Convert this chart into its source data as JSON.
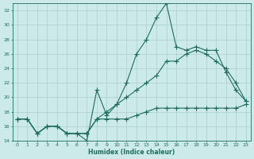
{
  "title": "",
  "xlabel": "Humidex (Indice chaleur)",
  "background_color": "#cdeaea",
  "grid_color": "#aacece",
  "line_color": "#1e6b5e",
  "xlim": [
    -0.5,
    23.5
  ],
  "ylim": [
    14,
    33
  ],
  "yticks": [
    14,
    16,
    18,
    20,
    22,
    24,
    26,
    28,
    30,
    32
  ],
  "xticks": [
    0,
    1,
    2,
    3,
    4,
    5,
    6,
    7,
    8,
    9,
    10,
    11,
    12,
    13,
    14,
    15,
    16,
    17,
    18,
    19,
    20,
    21,
    22,
    23
  ],
  "line1_x": [
    0,
    1,
    2,
    3,
    4,
    5,
    6,
    7,
    8,
    9,
    10,
    11,
    12,
    13,
    14,
    15,
    16,
    17,
    18,
    19,
    20,
    21,
    22,
    23
  ],
  "line1_y": [
    17,
    17,
    15,
    16,
    16,
    15,
    15,
    14,
    21,
    17.5,
    19,
    22,
    26,
    28,
    31,
    33,
    27,
    26.5,
    27,
    26.5,
    26.5,
    23.5,
    21,
    19.5
  ],
  "line2_x": [
    0,
    1,
    2,
    3,
    4,
    5,
    6,
    7,
    8,
    9,
    10,
    11,
    12,
    13,
    14,
    15,
    16,
    17,
    18,
    19,
    20,
    21,
    22,
    23
  ],
  "line2_y": [
    17,
    17,
    15,
    16,
    16,
    15,
    15,
    15,
    17,
    18,
    19,
    20,
    21,
    22,
    23,
    25,
    25,
    26,
    26.5,
    26,
    25,
    24,
    22,
    19.5
  ],
  "line3_x": [
    0,
    1,
    2,
    3,
    4,
    5,
    6,
    7,
    8,
    9,
    10,
    11,
    12,
    13,
    14,
    15,
    16,
    17,
    18,
    19,
    20,
    21,
    22,
    23
  ],
  "line3_y": [
    17,
    17,
    15,
    16,
    16,
    15,
    15,
    15,
    17,
    17,
    17,
    17,
    17.5,
    18,
    18.5,
    18.5,
    18.5,
    18.5,
    18.5,
    18.5,
    18.5,
    18.5,
    18.5,
    19
  ]
}
